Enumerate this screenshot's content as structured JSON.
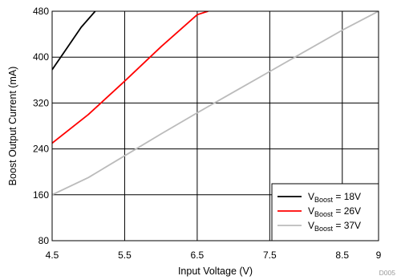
{
  "chart_data": {
    "type": "line",
    "xlabel": "Input Voltage (V)",
    "ylabel": "Boost Output Current (mA)",
    "xlim": [
      4.5,
      9
    ],
    "ylim": [
      80,
      480
    ],
    "x_ticks": [
      4.5,
      5.5,
      6.5,
      7.5,
      8.5,
      9
    ],
    "x_tick_labels": [
      "4.5",
      "5.5",
      "6.5",
      "7.5",
      "8.5",
      "9"
    ],
    "y_ticks": [
      80,
      160,
      240,
      320,
      400,
      480
    ],
    "y_tick_labels": [
      "80",
      "160",
      "240",
      "320",
      "400",
      "480"
    ],
    "grid": true,
    "legend_position": "bottom-right",
    "series": [
      {
        "legend_main": "V",
        "legend_sub": "Boost",
        "legend_value": " = 18V",
        "color": "#000000",
        "x": [
          4.5,
          4.7,
          4.9,
          5.1
        ],
        "y": [
          378,
          415,
          452,
          481
        ]
      },
      {
        "legend_main": "V",
        "legend_sub": "Boost",
        "legend_value": " = 26V",
        "color": "#ff0000",
        "x": [
          4.5,
          5.0,
          5.5,
          6.0,
          6.5,
          6.65
        ],
        "y": [
          250,
          300,
          358,
          418,
          474,
          480
        ]
      },
      {
        "legend_main": "V",
        "legend_sub": "Boost",
        "legend_value": " = 37V",
        "color": "#bbbbbb",
        "x": [
          4.5,
          5.0,
          5.5,
          6.0,
          6.5,
          7.0,
          7.5,
          8.0,
          8.5,
          9.0
        ],
        "y": [
          160,
          190,
          228,
          266,
          303,
          339,
          375,
          411,
          447,
          480
        ]
      }
    ],
    "code": "D005"
  }
}
